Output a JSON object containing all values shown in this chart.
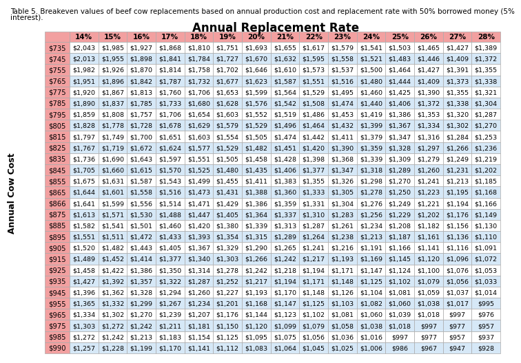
{
  "caption_line1": "Table 5. Breakeven values of beef cow replacements based on annual production cost and replacement rate with 50% borrowed money (5%",
  "caption_line2": "interest).",
  "title": "Annual Replacement Rate",
  "col_headers": [
    "14%",
    "15%",
    "16%",
    "17%",
    "18%",
    "19%",
    "20%",
    "21%",
    "22%",
    "23%",
    "24%",
    "25%",
    "26%",
    "27%",
    "28%"
  ],
  "row_labels": [
    "$735",
    "$745",
    "$755",
    "$765",
    "$775",
    "$785",
    "$795",
    "$805",
    "$815",
    "$825",
    "$835",
    "$845",
    "$855",
    "$865",
    "$866",
    "$875",
    "$885",
    "$895",
    "$905",
    "$915",
    "$925",
    "$935",
    "$945",
    "$955",
    "$965",
    "$975",
    "$985",
    "$990"
  ],
  "y_axis_label": "Annual Cow Cost",
  "table_data": [
    [
      2043,
      1985,
      1927,
      1868,
      1810,
      1751,
      1693,
      1655,
      1617,
      1579,
      1541,
      1503,
      1465,
      1427,
      1389
    ],
    [
      2013,
      1955,
      1898,
      1841,
      1784,
      1727,
      1670,
      1632,
      1595,
      1558,
      1521,
      1483,
      1446,
      1409,
      1372
    ],
    [
      1982,
      1926,
      1870,
      1814,
      1758,
      1702,
      1646,
      1610,
      1573,
      1537,
      1500,
      1464,
      1427,
      1391,
      1355
    ],
    [
      1951,
      1896,
      1842,
      1787,
      1732,
      1677,
      1623,
      1587,
      1551,
      1516,
      1480,
      1444,
      1409,
      1373,
      1338
    ],
    [
      1920,
      1867,
      1813,
      1760,
      1706,
      1653,
      1599,
      1564,
      1529,
      1495,
      1460,
      1425,
      1390,
      1355,
      1321
    ],
    [
      1890,
      1837,
      1785,
      1733,
      1680,
      1628,
      1576,
      1542,
      1508,
      1474,
      1440,
      1406,
      1372,
      1338,
      1304
    ],
    [
      1859,
      1808,
      1757,
      1706,
      1654,
      1603,
      1552,
      1519,
      1486,
      1453,
      1419,
      1386,
      1353,
      1320,
      1287
    ],
    [
      1828,
      1778,
      1728,
      1678,
      1629,
      1579,
      1529,
      1496,
      1464,
      1432,
      1399,
      1367,
      1334,
      1302,
      1270
    ],
    [
      1797,
      1749,
      1700,
      1651,
      1603,
      1554,
      1505,
      1474,
      1442,
      1411,
      1379,
      1347,
      1316,
      1284,
      1253
    ],
    [
      1767,
      1719,
      1672,
      1624,
      1577,
      1529,
      1482,
      1451,
      1420,
      1390,
      1359,
      1328,
      1297,
      1266,
      1236
    ],
    [
      1736,
      1690,
      1643,
      1597,
      1551,
      1505,
      1458,
      1428,
      1398,
      1368,
      1339,
      1309,
      1279,
      1249,
      1219
    ],
    [
      1705,
      1660,
      1615,
      1570,
      1525,
      1480,
      1435,
      1406,
      1377,
      1347,
      1318,
      1289,
      1260,
      1231,
      1202
    ],
    [
      1675,
      1631,
      1587,
      1543,
      1499,
      1455,
      1411,
      1383,
      1355,
      1326,
      1298,
      1270,
      1241,
      1213,
      1185
    ],
    [
      1644,
      1601,
      1558,
      1516,
      1473,
      1431,
      1388,
      1360,
      1333,
      1305,
      1278,
      1250,
      1223,
      1195,
      1168
    ],
    [
      1641,
      1599,
      1556,
      1514,
      1471,
      1429,
      1386,
      1359,
      1331,
      1304,
      1276,
      1249,
      1221,
      1194,
      1166
    ],
    [
      1613,
      1571,
      1530,
      1488,
      1447,
      1405,
      1364,
      1337,
      1310,
      1283,
      1256,
      1229,
      1202,
      1176,
      1149
    ],
    [
      1582,
      1541,
      1501,
      1460,
      1420,
      1380,
      1339,
      1313,
      1287,
      1261,
      1234,
      1208,
      1182,
      1156,
      1130
    ],
    [
      1551,
      1511,
      1472,
      1433,
      1393,
      1354,
      1315,
      1289,
      1264,
      1238,
      1213,
      1187,
      1161,
      1136,
      1110
    ],
    [
      1520,
      1482,
      1443,
      1405,
      1367,
      1329,
      1290,
      1265,
      1241,
      1216,
      1191,
      1166,
      1141,
      1116,
      1091
    ],
    [
      1489,
      1452,
      1414,
      1377,
      1340,
      1303,
      1266,
      1242,
      1217,
      1193,
      1169,
      1145,
      1120,
      1096,
      1072
    ],
    [
      1458,
      1422,
      1386,
      1350,
      1314,
      1278,
      1242,
      1218,
      1194,
      1171,
      1147,
      1124,
      1100,
      1076,
      1053
    ],
    [
      1427,
      1392,
      1357,
      1322,
      1287,
      1252,
      1217,
      1194,
      1171,
      1148,
      1125,
      1102,
      1079,
      1056,
      1033
    ],
    [
      1396,
      1362,
      1328,
      1294,
      1260,
      1227,
      1193,
      1170,
      1148,
      1126,
      1104,
      1081,
      1059,
      1037,
      1014
    ],
    [
      1365,
      1332,
      1299,
      1267,
      1234,
      1201,
      1168,
      1147,
      1125,
      1103,
      1082,
      1060,
      1038,
      1017,
      995
    ],
    [
      1334,
      1302,
      1270,
      1239,
      1207,
      1176,
      1144,
      1123,
      1102,
      1081,
      1060,
      1039,
      1018,
      997,
      976
    ],
    [
      1303,
      1272,
      1242,
      1211,
      1181,
      1150,
      1120,
      1099,
      1079,
      1058,
      1038,
      1018,
      997,
      977,
      957
    ],
    [
      1272,
      1242,
      1213,
      1183,
      1154,
      1125,
      1095,
      1075,
      1056,
      1036,
      1016,
      997,
      977,
      957,
      937
    ],
    [
      1257,
      1228,
      1199,
      1170,
      1141,
      1112,
      1083,
      1064,
      1045,
      1025,
      1006,
      986,
      967,
      947,
      928
    ]
  ],
  "header_bg": "#f2a0a0",
  "row_label_bg": "#f2a0a0",
  "even_row_bg": "#ffffff",
  "odd_row_bg": "#d6e8f7",
  "border_color": "#aaaaaa",
  "caption_fontsize": 7.5,
  "title_fontsize": 12,
  "cell_fontsize": 6.8,
  "header_fontsize": 7.5,
  "row_label_fontsize": 7.2,
  "y_label_fontsize": 9
}
